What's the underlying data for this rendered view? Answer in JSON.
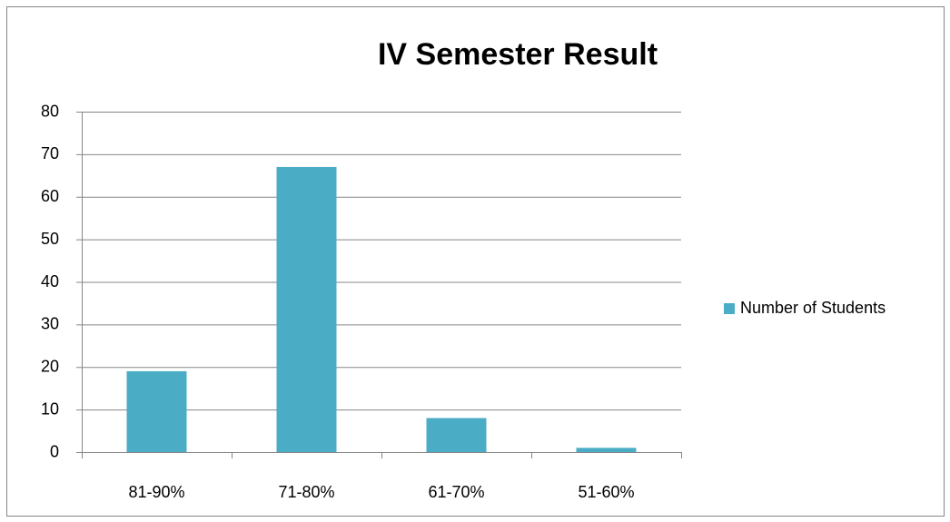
{
  "chart_data": {
    "type": "bar",
    "title": "IV Semester Result",
    "categories": [
      "81-90%",
      "71-80%",
      "61-70%",
      "51-60%"
    ],
    "series": [
      {
        "name": "Number of Students",
        "color": "#4bacc6",
        "values": [
          19,
          67,
          8,
          1
        ]
      }
    ],
    "ylim": [
      0,
      80
    ],
    "yticks": [
      0,
      10,
      20,
      30,
      40,
      50,
      60,
      70,
      80
    ],
    "grid": true,
    "legend": "right"
  }
}
